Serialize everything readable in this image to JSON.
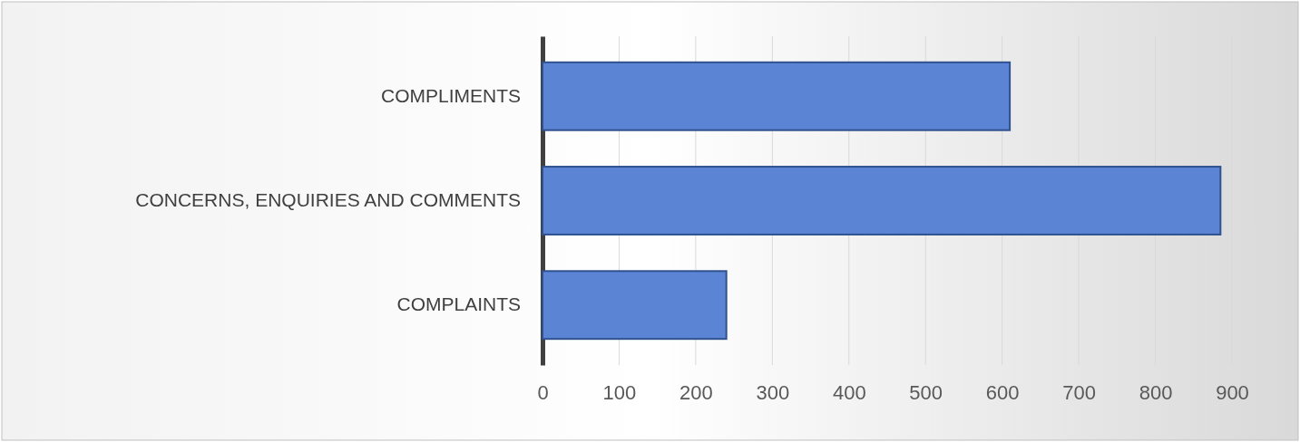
{
  "chart_data": {
    "type": "bar",
    "orientation": "horizontal",
    "categories": [
      "COMPLIMENTS",
      "CONCERNS, ENQUIRIES AND COMMENTS",
      "COMPLAINTS"
    ],
    "values": [
      610,
      885,
      240
    ],
    "color": "#5b84d4",
    "xlim": [
      0,
      900
    ],
    "xticks": [
      0,
      100,
      200,
      300,
      400,
      500,
      600,
      700,
      800,
      900
    ],
    "grid": "x"
  }
}
